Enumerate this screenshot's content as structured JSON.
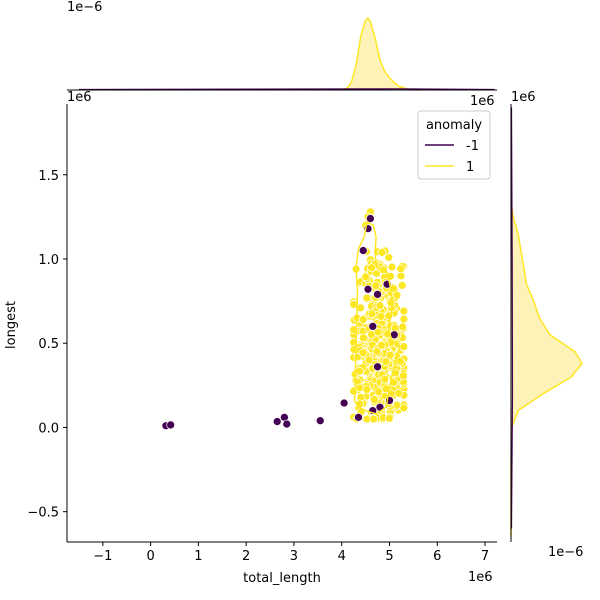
{
  "chart_data": {
    "type": "scatter",
    "xlabel": "total_length",
    "ylabel": "longest",
    "x_offset_text": "1e6",
    "y_offset_text": "1e6",
    "top_marginal_offset_text": "1e−6",
    "right_marginal_offset_text": "1e−6",
    "xlim": [
      -1.75,
      7.25
    ],
    "ylim": [
      -0.68,
      1.92
    ],
    "x_ticks": [
      -1,
      0,
      1,
      2,
      3,
      4,
      5,
      6,
      7
    ],
    "y_ticks": [
      -0.5,
      0.0,
      0.5,
      1.0,
      1.5
    ],
    "x_tick_labels": [
      "−1",
      "0",
      "1",
      "2",
      "3",
      "4",
      "5",
      "6",
      "7"
    ],
    "y_tick_labels": [
      "−0.5",
      "0.0",
      "0.5",
      "1.0",
      "1.5"
    ],
    "grid": false,
    "legend": {
      "title": "anomaly",
      "position": "top-right",
      "entries": [
        {
          "label": "-1",
          "color": "#440154"
        },
        {
          "label": "1",
          "color": "#fde725"
        }
      ]
    },
    "colors": {
      "anomaly_neg": "#440154",
      "anomaly_pos": "#fde725",
      "kde_fill": "#fdf3b8"
    },
    "series": [
      {
        "name": "-1",
        "color": "#440154",
        "points": [
          [
            0.32,
            0.01
          ],
          [
            0.42,
            0.015
          ],
          [
            2.65,
            0.035
          ],
          [
            2.8,
            0.06
          ],
          [
            2.85,
            0.02
          ],
          [
            3.55,
            0.04
          ],
          [
            4.05,
            0.145
          ],
          [
            4.35,
            0.06
          ],
          [
            4.65,
            0.1
          ],
          [
            4.8,
            0.12
          ],
          [
            5.0,
            0.16
          ],
          [
            4.75,
            0.36
          ],
          [
            4.65,
            0.6
          ],
          [
            4.55,
            0.82
          ],
          [
            4.75,
            0.79
          ],
          [
            4.95,
            0.85
          ],
          [
            5.1,
            0.55
          ],
          [
            4.55,
            1.18
          ],
          [
            4.6,
            1.24
          ],
          [
            4.45,
            1.05
          ]
        ]
      },
      {
        "name": "1",
        "color": "#fde725",
        "cluster": {
          "n": 380,
          "x_range": [
            4.25,
            5.3
          ],
          "y_range": [
            0.05,
            1.3
          ],
          "y_mode": 0.38
        },
        "extra_points": [
          [
            4.6,
            1.28
          ],
          [
            4.55,
            1.25
          ],
          [
            4.5,
            1.2
          ],
          [
            5.3,
            0.48
          ],
          [
            4.3,
            0.94
          ]
        ]
      }
    ],
    "kde_contour_pos": [
      [
        4.27,
        0.16
      ],
      [
        4.3,
        0.5
      ],
      [
        4.33,
        0.8
      ],
      [
        4.3,
        0.95
      ],
      [
        4.35,
        1.06
      ],
      [
        4.47,
        1.13
      ],
      [
        4.53,
        1.22
      ],
      [
        4.66,
        1.2
      ],
      [
        4.72,
        1.13
      ],
      [
        4.7,
        1.05
      ],
      [
        4.72,
        0.95
      ],
      [
        4.95,
        0.92
      ],
      [
        5.02,
        0.83
      ],
      [
        5.06,
        0.72
      ],
      [
        4.98,
        0.58
      ],
      [
        5.05,
        0.52
      ],
      [
        5.22,
        0.48
      ],
      [
        5.08,
        0.34
      ],
      [
        5.0,
        0.24
      ],
      [
        4.93,
        0.12
      ],
      [
        4.72,
        0.08
      ],
      [
        4.5,
        0.1
      ],
      [
        4.35,
        0.12
      ]
    ],
    "marginal_top": {
      "peak_x": 4.55,
      "x": [
        3.9,
        4.1,
        4.2,
        4.3,
        4.4,
        4.5,
        4.55,
        4.6,
        4.7,
        4.8,
        4.9,
        5.0,
        5.1,
        5.2,
        5.4,
        5.6
      ],
      "density": [
        0,
        0.02,
        0.1,
        0.35,
        0.75,
        0.97,
        1.0,
        0.95,
        0.72,
        0.42,
        0.26,
        0.17,
        0.1,
        0.05,
        0.01,
        0
      ],
      "neg_baseline": 0.01
    },
    "marginal_right": {
      "y": [
        -0.65,
        -0.2,
        0.0,
        0.1,
        0.2,
        0.3,
        0.38,
        0.45,
        0.55,
        0.65,
        0.75,
        0.85,
        0.95,
        1.05,
        1.15,
        1.25,
        1.35
      ],
      "density": [
        0,
        0.0,
        0.01,
        0.1,
        0.45,
        0.85,
        1.0,
        0.9,
        0.55,
        0.4,
        0.32,
        0.22,
        0.18,
        0.14,
        0.1,
        0.03,
        0
      ],
      "neg_spike_y": [
        -0.1,
        1.9
      ]
    }
  }
}
